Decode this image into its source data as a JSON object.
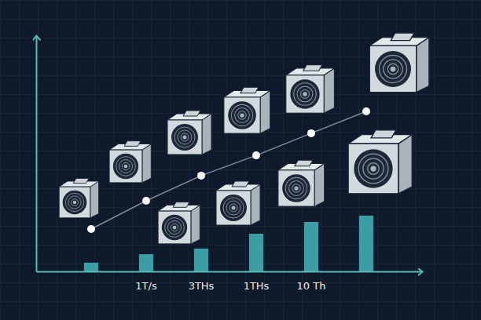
{
  "chart_data": {
    "type": "bar",
    "categories": [
      null,
      "1T/s",
      "3THs",
      "1THs",
      "10 Th",
      null
    ],
    "ylim": [
      0,
      100
    ],
    "tick_labels": "x",
    "series": [
      {
        "type": "bar",
        "color": "#3a9ea5",
        "values": [
          3.7,
          7.3,
          9.7,
          16,
          21,
          23.7
        ]
      },
      {
        "type": "line",
        "color": "#7f8b9a",
        "marker": "circle",
        "values": [
          18,
          30,
          40.7,
          49.3,
          58.7,
          68
        ]
      }
    ]
  }
}
